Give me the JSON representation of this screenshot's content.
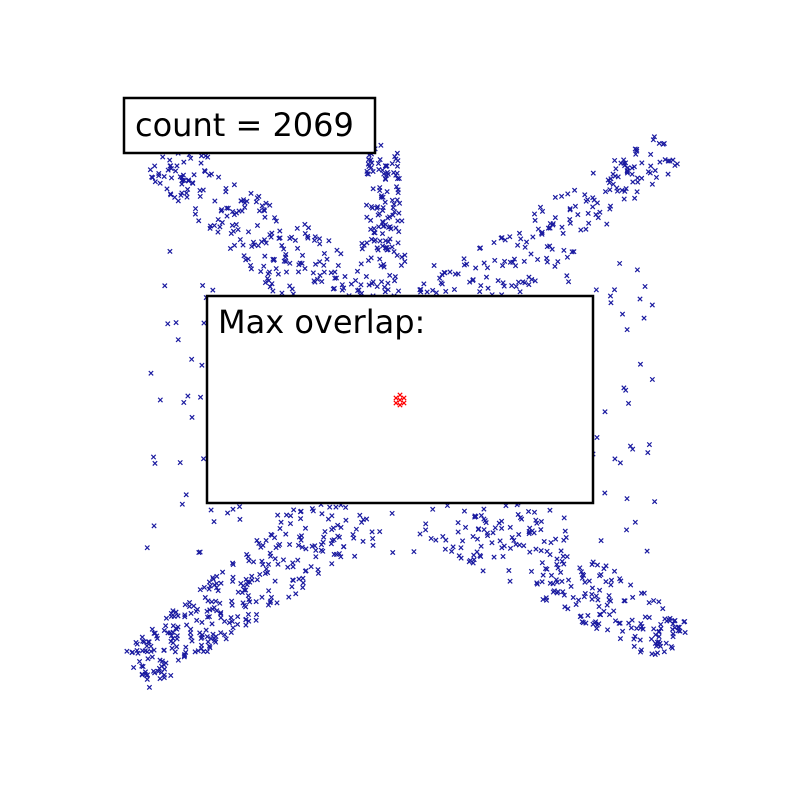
{
  "chart_data": {
    "type": "scatter",
    "title": "",
    "xlabel": "",
    "ylabel": "",
    "axes_visible": false,
    "grid": false,
    "marker": "x",
    "colors": {
      "points": "#1a1aa0",
      "overlap": "#ff0000",
      "box_border": "#000000",
      "box_fill": "#ffffff"
    },
    "annotations": {
      "count_label": "count = 2069",
      "overlap_label": "Max overlap:"
    },
    "overlap_points": [
      [
        0.0,
        0.0
      ]
    ],
    "arms": [
      {
        "name_hint": "top-left",
        "from": [
          -0.05,
          0.2
        ],
        "to": [
          -0.7,
          0.72
        ],
        "width": 0.12,
        "n": 240
      },
      {
        "name_hint": "top-center",
        "from": [
          -0.05,
          0.25
        ],
        "to": [
          -0.05,
          0.75
        ],
        "width": 0.07,
        "n": 140
      },
      {
        "name_hint": "top-right",
        "from": [
          0.05,
          0.2
        ],
        "to": [
          0.8,
          0.75
        ],
        "width": 0.1,
        "n": 200
      },
      {
        "name_hint": "bottom-left",
        "from": [
          -0.1,
          -0.3
        ],
        "to": [
          -0.78,
          -0.8
        ],
        "width": 0.11,
        "n": 320
      },
      {
        "name_hint": "bottom-right",
        "from": [
          0.1,
          -0.28
        ],
        "to": [
          0.82,
          -0.72
        ],
        "width": 0.12,
        "n": 260
      }
    ],
    "xlim": [
      -1.0,
      1.0
    ],
    "ylim": [
      -1.0,
      1.0
    ],
    "visible_markers_hint": "approximately 1160 of 2069 samples visible (the rest hidden behind the overlap box)"
  }
}
